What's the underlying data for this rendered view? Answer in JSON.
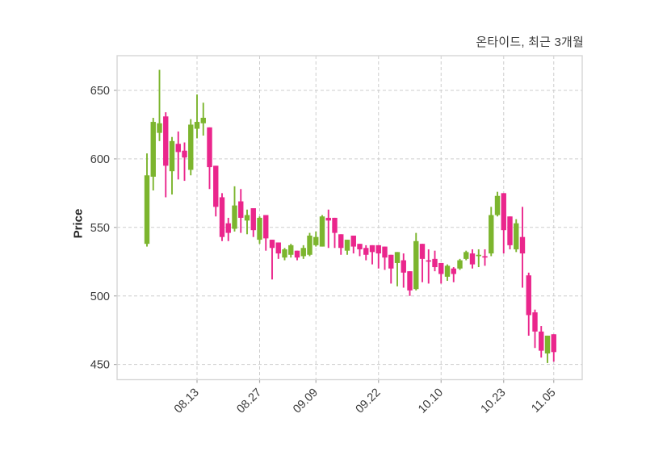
{
  "title": "온타이드, 최근 3개월",
  "chart_data": {
    "type": "candlestick",
    "title": "온타이드, 최근 3개월",
    "ylabel": "Price",
    "xlabel": "",
    "grid": true,
    "grid_style": "dashed",
    "y_ticks": [
      650,
      600,
      550,
      500,
      450
    ],
    "ylim": [
      439,
      675
    ],
    "x_ticks": [
      {
        "label": "08.13",
        "candle_index": 8
      },
      {
        "label": "08.27",
        "candle_index": 18
      },
      {
        "label": "09.09",
        "candle_index": 27
      },
      {
        "label": "09.22",
        "candle_index": 37
      },
      {
        "label": "10.10",
        "candle_index": 47
      },
      {
        "label": "10.23",
        "candle_index": 57
      },
      {
        "label": "11.05",
        "candle_index": 65
      }
    ],
    "colors": {
      "up": "#7cb52e",
      "down": "#ea268c",
      "grid": "#cdcdcd",
      "border": "#d6d6d6",
      "tick": "#ababab",
      "text": "#3a3a3a"
    },
    "candles_columns": [
      "open",
      "high",
      "low",
      "close"
    ],
    "candles": [
      [
        538,
        604,
        536,
        588
      ],
      [
        587,
        630,
        577,
        627
      ],
      [
        619,
        665,
        613,
        626
      ],
      [
        631,
        634,
        572,
        595
      ],
      [
        591,
        616,
        574,
        613
      ],
      [
        611,
        620,
        585,
        605
      ],
      [
        606,
        612,
        584,
        601
      ],
      [
        592,
        629,
        588,
        625
      ],
      [
        622,
        647,
        615,
        627
      ],
      [
        626,
        641,
        617,
        630
      ],
      [
        623,
        623,
        578,
        594
      ],
      [
        595,
        595,
        558,
        565
      ],
      [
        572,
        575,
        540,
        543
      ],
      [
        553,
        557,
        540,
        546
      ],
      [
        549,
        580,
        547,
        566
      ],
      [
        569,
        578,
        546,
        557
      ],
      [
        555,
        563,
        545,
        559
      ],
      [
        564,
        564,
        543,
        548
      ],
      [
        541,
        558,
        538,
        557
      ],
      [
        559,
        559,
        533,
        542
      ],
      [
        541,
        541,
        512,
        535
      ],
      [
        539,
        539,
        527,
        531
      ],
      [
        528,
        535,
        526,
        534
      ],
      [
        530,
        538,
        528,
        537
      ],
      [
        533,
        533,
        526,
        528
      ],
      [
        529,
        537,
        527,
        535
      ],
      [
        530,
        546,
        529,
        544
      ],
      [
        537,
        547,
        536,
        543
      ],
      [
        536,
        559,
        536,
        558
      ],
      [
        557,
        563,
        535,
        555
      ],
      [
        557,
        557,
        535,
        546
      ],
      [
        545,
        545,
        530,
        535
      ],
      [
        533,
        541,
        530,
        541
      ],
      [
        544,
        544,
        531,
        536
      ],
      [
        538,
        538,
        529,
        534
      ],
      [
        535,
        537,
        526,
        530
      ],
      [
        537,
        537,
        523,
        532
      ],
      [
        537,
        537,
        520,
        531
      ],
      [
        536,
        536,
        519,
        528
      ],
      [
        530,
        530,
        509,
        520
      ],
      [
        524,
        532,
        507,
        532
      ],
      [
        526,
        531,
        506,
        517
      ],
      [
        518,
        518,
        500,
        504
      ],
      [
        505,
        546,
        504,
        540
      ],
      [
        538,
        538,
        510,
        527
      ],
      [
        526,
        534,
        509,
        525
      ],
      [
        527,
        533,
        518,
        521
      ],
      [
        524,
        524,
        509,
        516
      ],
      [
        514,
        523,
        511,
        522
      ],
      [
        520,
        521,
        510,
        516
      ],
      [
        520,
        527,
        519,
        526
      ],
      [
        527,
        533,
        526,
        532
      ],
      [
        531,
        534,
        520,
        523
      ],
      [
        529,
        534,
        521,
        530
      ],
      [
        529,
        534,
        522,
        528
      ],
      [
        531,
        565,
        529,
        559
      ],
      [
        559,
        576,
        558,
        573
      ],
      [
        575,
        575,
        531,
        548
      ],
      [
        558,
        558,
        534,
        537
      ],
      [
        534,
        556,
        532,
        553
      ],
      [
        543,
        565,
        506,
        531
      ],
      [
        515,
        517,
        471,
        486
      ],
      [
        488,
        490,
        462,
        474
      ],
      [
        474,
        478,
        455,
        460
      ],
      [
        458,
        471,
        451,
        471
      ],
      [
        472,
        472,
        452,
        459
      ]
    ]
  }
}
